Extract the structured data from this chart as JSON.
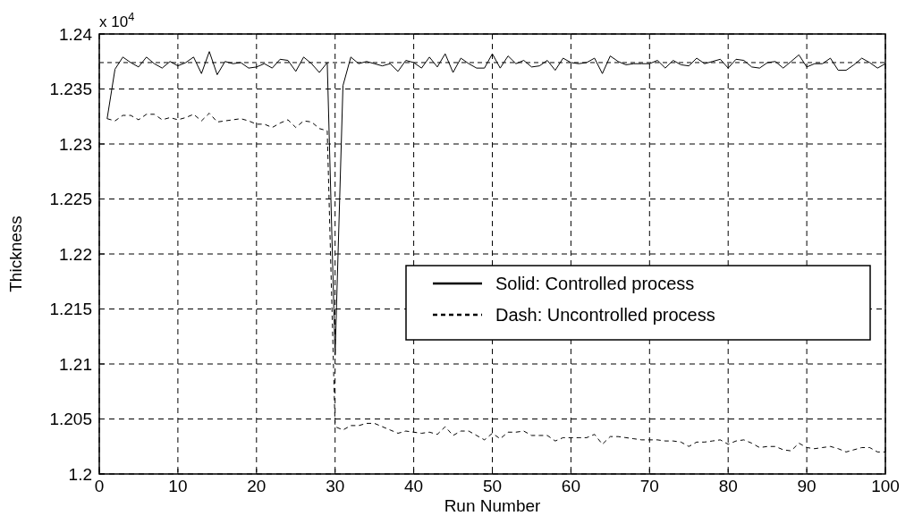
{
  "chart_data": {
    "type": "line",
    "xlabel": "Run Number",
    "ylabel": "Thickness",
    "annotations": [
      "x 10$^{4}$"
    ],
    "x": [
      1,
      2,
      3,
      4,
      5,
      6,
      7,
      8,
      9,
      10,
      11,
      12,
      13,
      14,
      15,
      16,
      17,
      18,
      19,
      20,
      21,
      22,
      23,
      24,
      25,
      26,
      27,
      28,
      29,
      30,
      31,
      32,
      33,
      34,
      35,
      36,
      37,
      38,
      39,
      40,
      41,
      42,
      43,
      44,
      45,
      46,
      47,
      48,
      49,
      50,
      51,
      52,
      53,
      54,
      55,
      56,
      57,
      58,
      59,
      60,
      61,
      62,
      63,
      64,
      65,
      66,
      67,
      68,
      69,
      70,
      71,
      72,
      73,
      74,
      75,
      76,
      77,
      78,
      79,
      80,
      81,
      82,
      83,
      84,
      85,
      86,
      87,
      88,
      89,
      90,
      91,
      92,
      93,
      94,
      95,
      96,
      97,
      98,
      99,
      100
    ],
    "series": [
      {
        "name": "Solid: Controlled process",
        "color": "#000000",
        "line_style": "solid",
        "values": [
          1.2323,
          1.2368,
          1.2379,
          1.2374,
          1.237,
          1.2379,
          1.2373,
          1.2369,
          1.2375,
          1.2371,
          1.2374,
          1.2379,
          1.2364,
          1.2384,
          1.2363,
          1.2375,
          1.2373,
          1.2374,
          1.2369,
          1.237,
          1.2373,
          1.2369,
          1.2377,
          1.2376,
          1.2366,
          1.2379,
          1.2373,
          1.2365,
          1.2374,
          1.2108,
          1.2353,
          1.2379,
          1.2373,
          1.2375,
          1.2373,
          1.2371,
          1.2373,
          1.2366,
          1.2376,
          1.2374,
          1.2369,
          1.2379,
          1.237,
          1.2382,
          1.2365,
          1.2378,
          1.2373,
          1.2369,
          1.2369,
          1.2382,
          1.2369,
          1.238,
          1.2373,
          1.2376,
          1.237,
          1.2371,
          1.2376,
          1.2367,
          1.2378,
          1.2374,
          1.2373,
          1.2374,
          1.2378,
          1.2364,
          1.238,
          1.2375,
          1.2372,
          1.2373,
          1.2373,
          1.2373,
          1.2376,
          1.2369,
          1.2376,
          1.2372,
          1.2371,
          1.2378,
          1.2373,
          1.2375,
          1.2377,
          1.2369,
          1.2377,
          1.2376,
          1.237,
          1.2369,
          1.2374,
          1.2375,
          1.2369,
          1.2375,
          1.2381,
          1.237,
          1.2373,
          1.2373,
          1.2378,
          1.2367,
          1.2367,
          1.2372,
          1.2378,
          1.2374,
          1.2369,
          1.2373
        ]
      },
      {
        "name": "Dash: Uncontrolled process",
        "color": "#000000",
        "line_style": "dashed",
        "values": [
          1.2323,
          1.2321,
          1.2326,
          1.2326,
          1.2322,
          1.2327,
          1.2327,
          1.2322,
          1.2324,
          1.2322,
          1.2324,
          1.2327,
          1.2321,
          1.2328,
          1.232,
          1.2321,
          1.2322,
          1.2323,
          1.2321,
          1.2318,
          1.2318,
          1.2315,
          1.2319,
          1.2322,
          1.2315,
          1.2321,
          1.232,
          1.2314,
          1.2312,
          1.2043,
          1.204,
          1.2044,
          1.2044,
          1.2046,
          1.2046,
          1.2043,
          1.204,
          1.2037,
          1.2039,
          1.2038,
          1.2037,
          1.2038,
          1.2036,
          1.2043,
          1.2035,
          1.2039,
          1.2039,
          1.2035,
          1.2031,
          1.2037,
          1.2032,
          1.2038,
          1.2038,
          1.2039,
          1.2035,
          1.2035,
          1.2035,
          1.203,
          1.2033,
          1.2033,
          1.2033,
          1.2033,
          1.2036,
          1.2027,
          1.2034,
          1.2034,
          1.2033,
          1.2032,
          1.2031,
          1.2031,
          1.2031,
          1.203,
          1.203,
          1.2029,
          1.2025,
          1.2029,
          1.2029,
          1.203,
          1.2031,
          1.2027,
          1.203,
          1.2031,
          1.2028,
          1.2024,
          1.2025,
          1.2025,
          1.2022,
          1.2021,
          1.2028,
          1.2024,
          1.2023,
          1.2024,
          1.2025,
          1.2023,
          1.202,
          1.2022,
          1.2024,
          1.2024,
          1.202,
          1.202
        ]
      }
    ],
    "xlim": [
      0,
      100
    ],
    "xticks": [
      0,
      10,
      20,
      30,
      40,
      50,
      60,
      70,
      80,
      90,
      100
    ],
    "ylim": [
      1.2,
      1.24
    ],
    "yticks": [
      1.2,
      1.205,
      1.21,
      1.215,
      1.22,
      1.225,
      1.23,
      1.235,
      1.24
    ],
    "ref_lines": [
      {
        "axis": "y",
        "value": 1.2374,
        "color": "#000000",
        "line_style": "dashed"
      }
    ],
    "grid": true,
    "legend": "right",
    "marker": "none"
  }
}
